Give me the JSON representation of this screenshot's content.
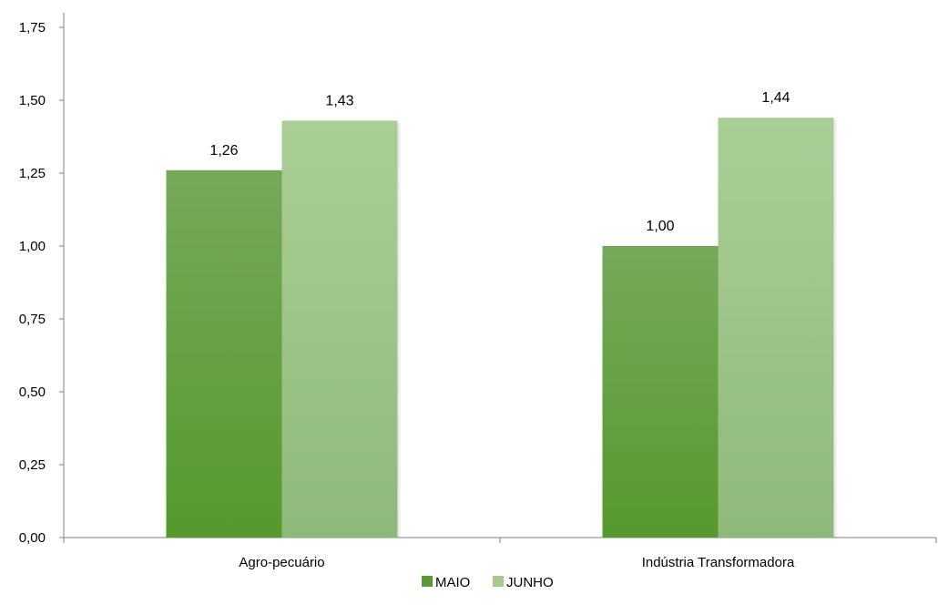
{
  "chart_data": {
    "type": "bar",
    "categories": [
      "Agro-pecuário",
      "Indústria Transformadora"
    ],
    "series": [
      {
        "name": "MAIO",
        "values": [
          1.26,
          1.0
        ],
        "labels": [
          "1,26",
          "1,00"
        ],
        "color": "#5a9a34"
      },
      {
        "name": "JUNHO",
        "values": [
          1.43,
          1.44
        ],
        "labels": [
          "1,43",
          "1,44"
        ],
        "color": "#a5c98f"
      }
    ],
    "ylim": [
      0,
      1.75
    ],
    "yticks": [
      0,
      0.25,
      0.5,
      0.75,
      1.0,
      1.25,
      1.5,
      1.75
    ],
    "ytick_labels": [
      "0,00",
      "0,25",
      "0,50",
      "0,75",
      "1,00",
      "1,25",
      "1,50",
      "1,75"
    ],
    "title": "",
    "xlabel": "",
    "ylabel": "",
    "grid": false,
    "legend": "bottom"
  }
}
